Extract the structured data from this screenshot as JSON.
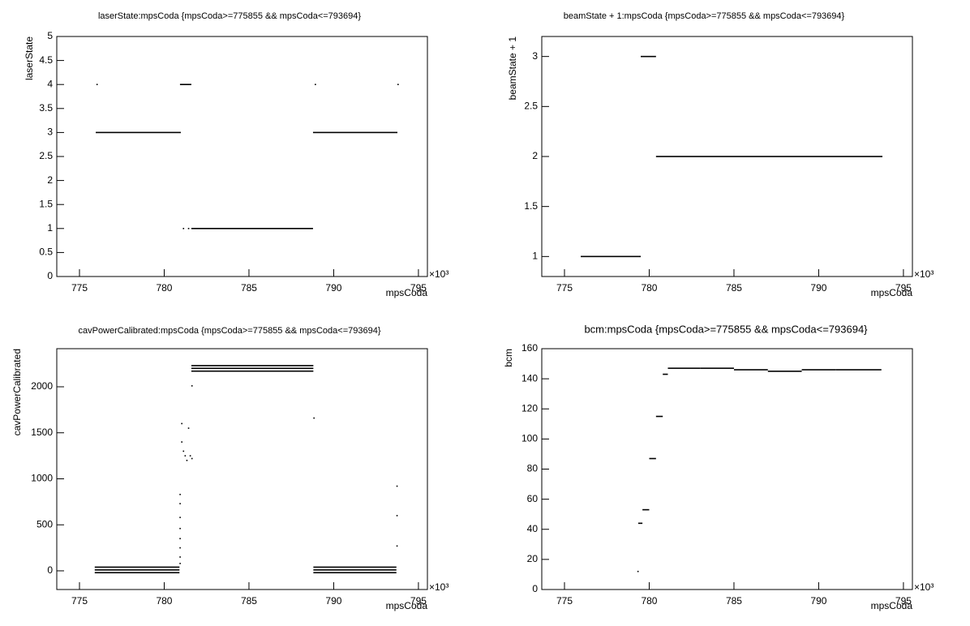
{
  "chart_data": [
    {
      "type": "segments",
      "title": "laserState:mpsCoda {mpsCoda>=775855 && mpsCoda<=793694}",
      "x_label": "mpsCoda",
      "y_label": "laserState",
      "x_exponent": "×10³",
      "color": "#000000",
      "xlim": [
        773.66,
        795.53
      ],
      "xticks": [
        775,
        780,
        785,
        790,
        795
      ],
      "ylim": [
        0,
        5
      ],
      "yticks": [
        0,
        0.5,
        1,
        1.5,
        2,
        2.5,
        3,
        3.5,
        4,
        4.5,
        5
      ],
      "x_start": [
        775.96,
        780.93,
        781.1,
        781.4,
        781.6,
        788.78,
        776.0,
        788.88,
        793.76
      ],
      "x_end": [
        780.98,
        781.6,
        781.1,
        781.4,
        788.78,
        793.76,
        776.0,
        788.88,
        793.76
      ],
      "values": [
        3,
        4,
        1,
        1,
        1,
        3,
        4,
        4,
        4
      ]
    },
    {
      "type": "segments",
      "title": "beamState + 1:mpsCoda {mpsCoda>=775855 && mpsCoda<=793694}",
      "x_label": "mpsCoda",
      "y_label": "beamState + 1",
      "x_exponent": "×10³",
      "color": "#000000",
      "xlim": [
        773.66,
        795.53
      ],
      "xticks": [
        775,
        780,
        785,
        790,
        795
      ],
      "ylim": [
        0.8,
        3.2
      ],
      "yticks": [
        1,
        1.5,
        2,
        2.5,
        3
      ],
      "x_start": [
        775.96,
        779.5,
        780.4
      ],
      "x_end": [
        779.5,
        780.4,
        793.76
      ],
      "values": [
        1,
        3,
        2
      ]
    },
    {
      "type": "segments",
      "title": "cavPowerCalibrated:mpsCoda {mpsCoda>=775855 && mpsCoda<=793694}",
      "x_label": "mpsCoda",
      "y_label": "cavPowerCalibrated",
      "x_exponent": "×10³",
      "color": "#000000",
      "xlim": [
        773.66,
        795.53
      ],
      "xticks": [
        775,
        780,
        785,
        790,
        795
      ],
      "ylim": [
        -203,
        2414
      ],
      "yticks": [
        0,
        500,
        1000,
        1500,
        2000
      ],
      "x_start": [
        775.9,
        775.9,
        775.9,
        780.9,
        780.9,
        780.9,
        780.9,
        780.9,
        780.9,
        780.9,
        780.9,
        781.0,
        781.0,
        781.1,
        781.2,
        781.3,
        781.4,
        781.5,
        781.6,
        781.6,
        781.6,
        781.6,
        781.6,
        788.8,
        788.8,
        788.8,
        788.8,
        793.7,
        793.7,
        793.7
      ],
      "x_end": [
        780.9,
        780.9,
        780.9,
        780.9,
        780.9,
        780.9,
        780.9,
        780.9,
        780.9,
        780.9,
        780.9,
        781.0,
        781.0,
        781.1,
        781.2,
        781.3,
        781.4,
        781.5,
        781.6,
        788.8,
        788.8,
        788.8,
        781.6,
        788.8,
        793.7,
        793.7,
        793.7,
        793.7,
        793.7,
        793.7
      ],
      "values": [
        40,
        10,
        -20,
        830,
        730,
        580,
        460,
        350,
        250,
        150,
        80,
        1600,
        1400,
        1300,
        1250,
        1200,
        1550,
        1250,
        1220,
        2230,
        2200,
        2170,
        2010,
        1660,
        40,
        10,
        -20,
        920,
        600,
        270
      ]
    },
    {
      "type": "segments",
      "title": "bcm:mpsCoda {mpsCoda>=775855 && mpsCoda<=793694}",
      "x_label": "mpsCoda",
      "y_label": "bcm",
      "x_exponent": "×10³",
      "color": "#000000",
      "xlim": [
        773.66,
        795.53
      ],
      "xticks": [
        775,
        780,
        785,
        790,
        795
      ],
      "ylim": [
        0,
        160
      ],
      "yticks": [
        0,
        20,
        40,
        60,
        80,
        100,
        120,
        140,
        160
      ],
      "x_start": [
        779.3,
        779.35,
        779.6,
        780.0,
        780.4,
        780.8,
        781.1,
        783,
        785,
        787,
        789,
        791
      ],
      "x_end": [
        779.3,
        779.6,
        780.0,
        780.4,
        780.8,
        781.1,
        783,
        785,
        787,
        789,
        791,
        793.7
      ],
      "values": [
        12,
        44,
        53,
        87,
        115,
        143,
        147,
        147,
        146,
        145,
        146,
        146
      ]
    }
  ]
}
